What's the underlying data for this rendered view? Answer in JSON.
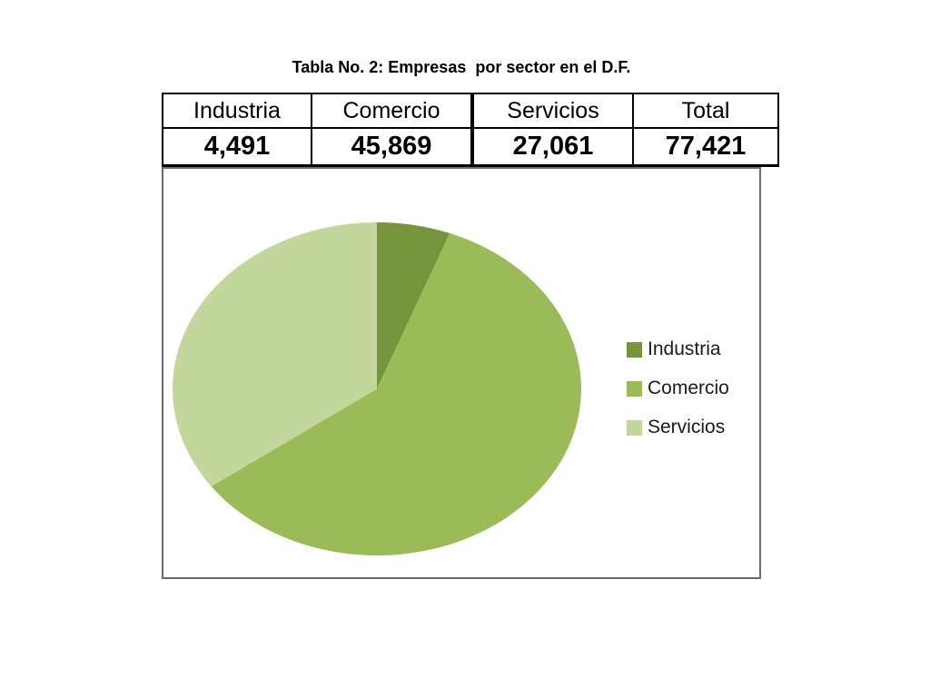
{
  "title": "Tabla No. 2: Empresas  por sector en el D.F.",
  "table": {
    "columns": [
      "Industria",
      "Comercio",
      "Servicios",
      "Total"
    ],
    "values": [
      "4,491",
      "45,869",
      "27,061",
      "77,421"
    ]
  },
  "legend": [
    {
      "label": "Industria",
      "color": "#77933C"
    },
    {
      "label": "Comercio",
      "color": "#9BBB59"
    },
    {
      "label": "Servicios",
      "color": "#C3D69B"
    }
  ],
  "chart_data": {
    "type": "pie",
    "title": "Tabla No. 2: Empresas  por sector en el D.F.",
    "categories": [
      "Industria",
      "Comercio",
      "Servicios"
    ],
    "values": [
      4491,
      45869,
      27061
    ],
    "total": 77421,
    "percentages": [
      5.8,
      59.2,
      35.0
    ],
    "colors": [
      "#77933C",
      "#9BBB59",
      "#C3D69B"
    ],
    "start_angle_deg": 0,
    "direction": "clockwise",
    "legend_position": "right",
    "legend_entries": [
      "Industria",
      "Comercio",
      "Servicios"
    ],
    "grid": false
  }
}
